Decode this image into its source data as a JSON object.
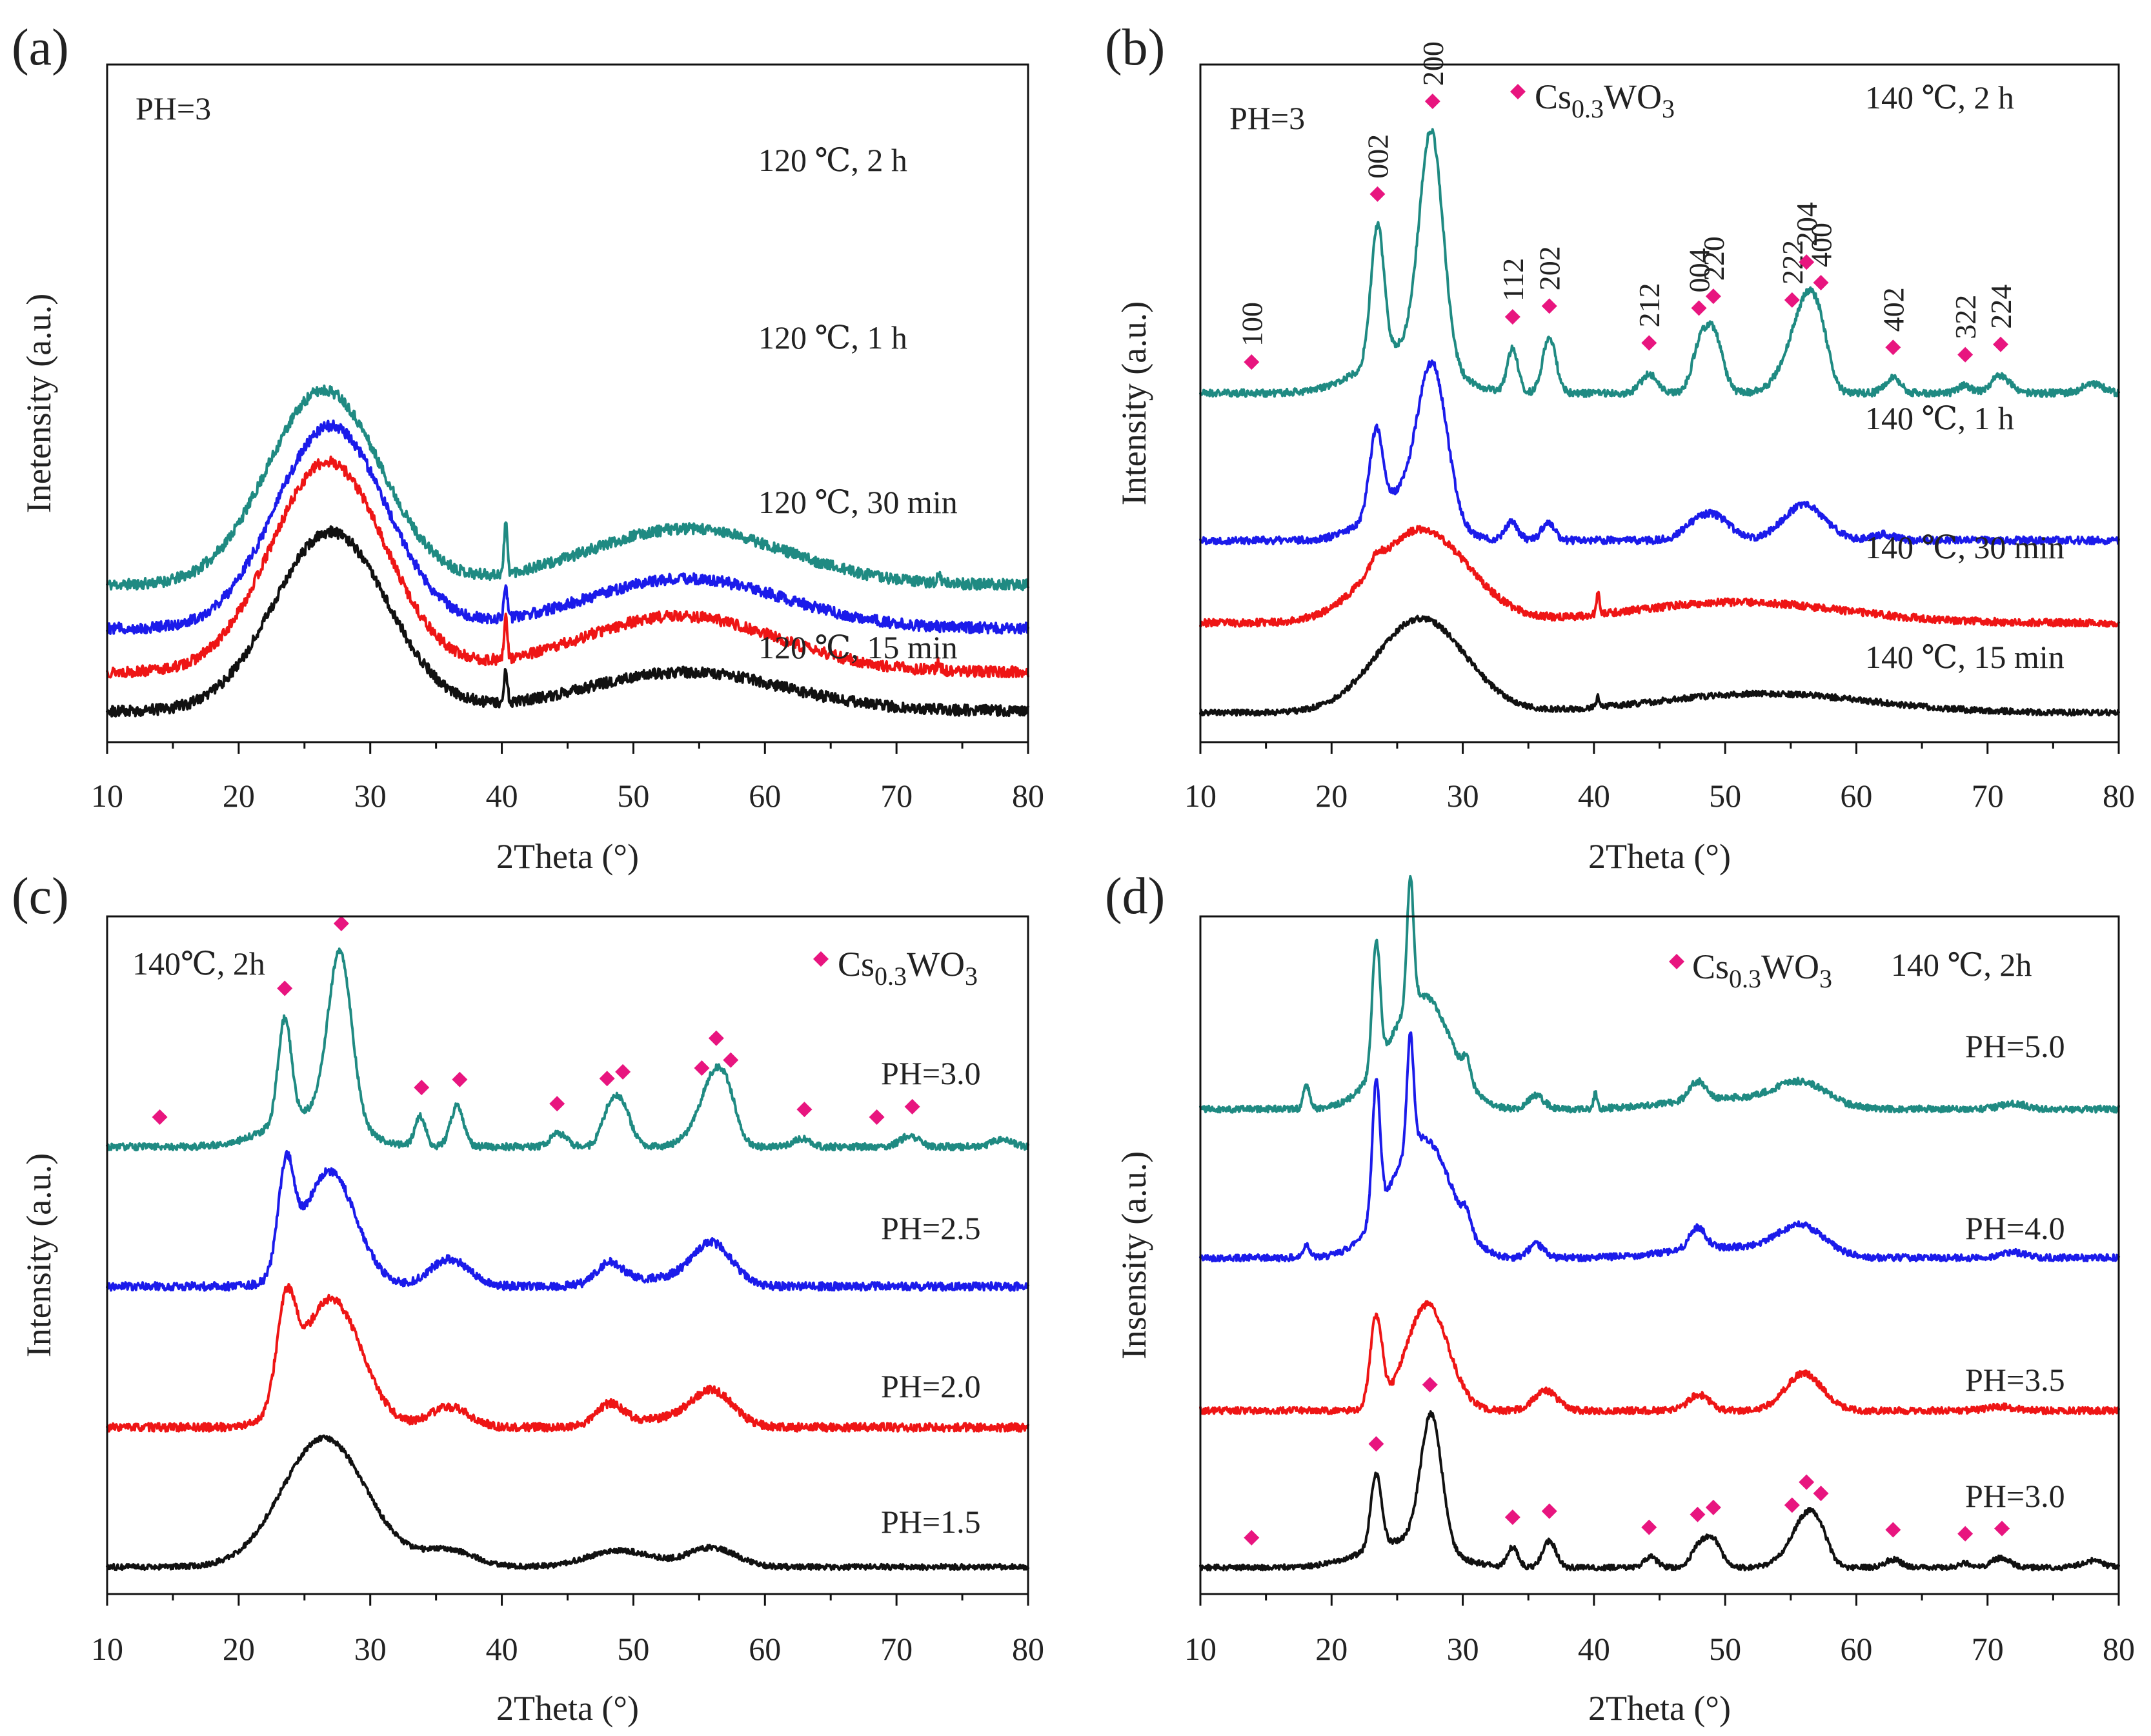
{
  "colors": {
    "teal": "#1f8a82",
    "blue": "#1b1bea",
    "red": "#ee1515",
    "black": "#111111",
    "marker": "#e8157f"
  },
  "legend_name": "Cs0.3WO3",
  "legend_main": "Cs",
  "legend_sub": "0.3",
  "legend_mid": "WO",
  "legend_sub2": "3",
  "chart_data": [
    {
      "panel": "(a)",
      "type": "line",
      "xlabel": "2Theta (°)",
      "ylabel": "Inetensity (a.u.)",
      "xlim": [
        10,
        80
      ],
      "xticks": [
        "10",
        "20",
        "30",
        "40",
        "50",
        "60",
        "70",
        "80"
      ],
      "annotation": "PH=3",
      "series": [
        {
          "name": "120 ℃, 2 h",
          "color": "teal",
          "baseline": 0.86,
          "peaks": [
            [
              26.5,
              1.25,
              4.3
            ],
            [
              54,
              0.36,
              7.5
            ],
            [
              40.3,
              0.33,
              0.12
            ],
            [
              73.2,
              0.05,
              0.15
            ]
          ],
          "noise": 0.035,
          "seed": 11
        },
        {
          "name": "120 ℃, 1 h",
          "color": "blue",
          "baseline": 0.58,
          "peaks": [
            [
              27,
              1.3,
              4.2
            ],
            [
              54,
              0.32,
              7.5
            ],
            [
              40.3,
              0.22,
              0.12
            ]
          ],
          "noise": 0.035,
          "seed": 12
        },
        {
          "name": "120 ℃, 30 min",
          "color": "red",
          "baseline": 0.3,
          "peaks": [
            [
              26.8,
              1.35,
              4.3
            ],
            [
              53.5,
              0.36,
              7.5
            ],
            [
              40.3,
              0.26,
              0.12
            ],
            [
              73.2,
              0.05,
              0.15
            ]
          ],
          "noise": 0.035,
          "seed": 13
        },
        {
          "name": "120 ℃, 15 min",
          "color": "black",
          "baseline": 0.05,
          "peaks": [
            [
              27,
              1.15,
              4.3
            ],
            [
              54,
              0.25,
              7.5
            ],
            [
              40.3,
              0.22,
              0.12
            ]
          ],
          "noise": 0.035,
          "seed": 14
        }
      ]
    },
    {
      "panel": "(b)",
      "type": "line",
      "xlabel": "2Theta (°)",
      "ylabel": "Intensity (a.u.)",
      "xlim": [
        10,
        80
      ],
      "xticks": [
        "10",
        "20",
        "30",
        "40",
        "50",
        "60",
        "70",
        "80"
      ],
      "annotation": "PH=3",
      "legend": "Cs0.3WO3",
      "miller_indices": [
        {
          "hkl": "100",
          "x": 13.9
        },
        {
          "hkl": "002",
          "x": 23.5
        },
        {
          "hkl": "200",
          "x": 27.7
        },
        {
          "hkl": "112",
          "x": 33.8
        },
        {
          "hkl": "202",
          "x": 36.6
        },
        {
          "hkl": "212",
          "x": 44.2
        },
        {
          "hkl": "004",
          "x": 48.0
        },
        {
          "hkl": "220",
          "x": 49.1
        },
        {
          "hkl": "222",
          "x": 55.1
        },
        {
          "hkl": "204",
          "x": 56.2
        },
        {
          "hkl": "400",
          "x": 57.3
        },
        {
          "hkl": "402",
          "x": 62.8
        },
        {
          "hkl": "322",
          "x": 68.3
        },
        {
          "hkl": "224",
          "x": 71.0
        }
      ],
      "series": [
        {
          "name": "140 ℃, 2 h",
          "color": "teal",
          "baseline": 2.22,
          "peaks": [
            [
              23.5,
              0.9,
              0.5
            ],
            [
              25.5,
              0.3,
              3
            ],
            [
              27.6,
              1.55,
              0.9
            ],
            [
              33.8,
              0.3,
              0.4
            ],
            [
              36.6,
              0.38,
              0.5
            ],
            [
              44.2,
              0.13,
              0.6
            ],
            [
              48.0,
              0.25,
              0.6
            ],
            [
              49.1,
              0.4,
              0.7
            ],
            [
              55.3,
              0.25,
              1.2
            ],
            [
              56.3,
              0.42,
              0.9
            ],
            [
              57.3,
              0.25,
              0.7
            ],
            [
              62.8,
              0.1,
              0.6
            ],
            [
              68.3,
              0.05,
              0.5
            ],
            [
              71.0,
              0.12,
              0.7
            ],
            [
              78,
              0.06,
              0.8
            ]
          ],
          "noise": 0.025,
          "seed": 21
        },
        {
          "name": "140 ℃, 1 h",
          "color": "blue",
          "baseline": 1.22,
          "peaks": [
            [
              23.4,
              0.55,
              0.5
            ],
            [
              25.5,
              0.3,
              2.5
            ],
            [
              27.7,
              1.0,
              1.1
            ],
            [
              33.7,
              0.12,
              0.5
            ],
            [
              36.5,
              0.12,
              0.5
            ],
            [
              47.5,
              0.07,
              1
            ],
            [
              49.2,
              0.16,
              1.2
            ],
            [
              56,
              0.24,
              1.6
            ],
            [
              62,
              0.04,
              1
            ]
          ],
          "noise": 0.025,
          "seed": 22
        },
        {
          "name": "140 ℃, 30 min",
          "color": "red",
          "baseline": 0.66,
          "peaks": [
            [
              26.8,
              0.63,
              3.6
            ],
            [
              23.4,
              0.08,
              0.4
            ],
            [
              40.3,
              0.14,
              0.12
            ],
            [
              51,
              0.14,
              8
            ]
          ],
          "noise": 0.025,
          "seed": 23
        },
        {
          "name": "140 ℃, 15 min",
          "color": "black",
          "baseline": 0.05,
          "peaks": [
            [
              26.8,
              0.64,
              3.4
            ],
            [
              40.3,
              0.07,
              0.12
            ],
            [
              53,
              0.13,
              8
            ]
          ],
          "noise": 0.02,
          "seed": 24
        }
      ]
    },
    {
      "panel": "(c)",
      "type": "line",
      "xlabel": "2Theta (°)",
      "ylabel": "Intensity (a.u.)",
      "xlim": [
        10,
        80
      ],
      "xticks": [
        "10",
        "20",
        "30",
        "40",
        "50",
        "60",
        "70",
        "80"
      ],
      "annotation": "140℃,   2h",
      "legend": "Cs0.3WO3",
      "markers_on": "PH=3.0",
      "marker_positions": [
        14.0,
        23.5,
        27.8,
        33.9,
        36.8,
        44.2,
        48.0,
        49.2,
        55.2,
        56.3,
        57.4,
        63.0,
        68.5,
        71.2
      ],
      "series": [
        {
          "name": "PH=3.0",
          "color": "teal",
          "baseline": 3.15,
          "peaks": [
            [
              23.5,
              0.75,
              0.5
            ],
            [
              25.5,
              0.25,
              3
            ],
            [
              27.7,
              1.25,
              0.9
            ],
            [
              33.8,
              0.22,
              0.4
            ],
            [
              36.6,
              0.3,
              0.5
            ],
            [
              44.3,
              0.1,
              0.6
            ],
            [
              48.1,
              0.2,
              0.6
            ],
            [
              49.1,
              0.3,
              0.7
            ],
            [
              55.5,
              0.2,
              1.2
            ],
            [
              56.3,
              0.35,
              0.9
            ],
            [
              57.3,
              0.2,
              0.7
            ],
            [
              62.8,
              0.06,
              0.6
            ],
            [
              71,
              0.08,
              0.7
            ],
            [
              78,
              0.05,
              0.8
            ]
          ],
          "noise": 0.025,
          "seed": 31
        },
        {
          "name": "PH=2.5",
          "color": "blue",
          "baseline": 2.12,
          "peaks": [
            [
              23.6,
              0.75,
              0.6
            ],
            [
              26.9,
              0.85,
              2.0
            ],
            [
              36,
              0.2,
              1.5
            ],
            [
              48.2,
              0.15,
              1.0
            ],
            [
              52,
              0.06,
              3
            ],
            [
              56,
              0.3,
              1.5
            ]
          ],
          "noise": 0.03,
          "seed": 32
        },
        {
          "name": "PH=2.0",
          "color": "red",
          "baseline": 1.08,
          "peaks": [
            [
              23.6,
              0.7,
              0.7
            ],
            [
              27,
              0.95,
              2.3
            ],
            [
              36,
              0.15,
              1.5
            ],
            [
              48.2,
              0.15,
              1.0
            ],
            [
              52,
              0.06,
              3
            ],
            [
              56,
              0.25,
              1.6
            ]
          ],
          "noise": 0.03,
          "seed": 33
        },
        {
          "name": "PH=1.5",
          "color": "black",
          "baseline": 0.05,
          "peaks": [
            [
              26.5,
              0.95,
              3.2
            ],
            [
              36,
              0.12,
              2
            ],
            [
              49,
              0.12,
              2.5
            ],
            [
              56,
              0.14,
              1.8
            ]
          ],
          "noise": 0.02,
          "seed": 34
        }
      ]
    },
    {
      "panel": "(d)",
      "type": "line",
      "xlabel": "2Theta (°)",
      "ylabel": "Insensity (a.u.)",
      "xlim": [
        10,
        80
      ],
      "xticks": [
        "10",
        "20",
        "30",
        "40",
        "50",
        "60",
        "70",
        "80"
      ],
      "annotation": "140 ℃,   2h",
      "legend": "Cs0.3WO3",
      "markers_on": "PH=3.0",
      "marker_positions": [
        13.9,
        23.4,
        27.5,
        33.8,
        36.6,
        44.2,
        47.9,
        49.1,
        55.1,
        56.2,
        57.3,
        62.8,
        68.3,
        71.1
      ],
      "series": [
        {
          "name": "PH=5.0",
          "color": "teal",
          "baseline": 3.5,
          "peaks": [
            [
              18.1,
              0.18,
              0.25
            ],
            [
              23.4,
              0.95,
              0.3
            ],
            [
              26.0,
              0.95,
              0.25
            ],
            [
              27.3,
              0.75,
              2.0
            ],
            [
              24.5,
              0.25,
              2
            ],
            [
              30.3,
              0.15,
              0.3
            ],
            [
              35.6,
              0.1,
              0.6
            ],
            [
              40.1,
              0.12,
              0.12
            ],
            [
              47.9,
              0.14,
              0.6
            ],
            [
              50,
              0.08,
              4
            ],
            [
              55.8,
              0.18,
              2.0
            ],
            [
              72,
              0.04,
              1
            ]
          ],
          "noise": 0.025,
          "seed": 41
        },
        {
          "name": "PH=4.0",
          "color": "blue",
          "baseline": 2.38,
          "peaks": [
            [
              18.1,
              0.1,
              0.25
            ],
            [
              23.4,
              1.0,
              0.3
            ],
            [
              26.0,
              0.85,
              0.25
            ],
            [
              27.3,
              0.8,
              2.0
            ],
            [
              24.5,
              0.25,
              2
            ],
            [
              30.3,
              0.12,
              0.3
            ],
            [
              35.6,
              0.1,
              0.6
            ],
            [
              47.9,
              0.16,
              0.6
            ],
            [
              50,
              0.08,
              4
            ],
            [
              55.8,
              0.22,
              1.8
            ],
            [
              72,
              0.04,
              1
            ]
          ],
          "noise": 0.025,
          "seed": 42
        },
        {
          "name": "PH=3.5",
          "color": "red",
          "baseline": 1.23,
          "peaks": [
            [
              23.4,
              0.68,
              0.45
            ],
            [
              27.3,
              0.8,
              1.6
            ],
            [
              36.3,
              0.15,
              0.9
            ],
            [
              48,
              0.12,
              0.8
            ],
            [
              56,
              0.28,
              1.4
            ],
            [
              71,
              0.03,
              1
            ]
          ],
          "noise": 0.025,
          "seed": 43
        },
        {
          "name": "PH=3.0",
          "color": "black",
          "baseline": 0.05,
          "peaks": [
            [
              23.4,
              0.55,
              0.4
            ],
            [
              25.5,
              0.2,
              3
            ],
            [
              27.6,
              1.0,
              0.8
            ],
            [
              33.8,
              0.15,
              0.4
            ],
            [
              36.6,
              0.2,
              0.5
            ],
            [
              44.3,
              0.08,
              0.5
            ],
            [
              48,
              0.15,
              0.6
            ],
            [
              49.1,
              0.2,
              0.6
            ],
            [
              55.5,
              0.15,
              1.2
            ],
            [
              56.3,
              0.25,
              0.9
            ],
            [
              57.3,
              0.15,
              0.7
            ],
            [
              62.8,
              0.06,
              0.6
            ],
            [
              68.3,
              0.03,
              0.5
            ],
            [
              71,
              0.07,
              0.7
            ],
            [
              78,
              0.05,
              0.8
            ]
          ],
          "noise": 0.02,
          "seed": 44
        }
      ]
    }
  ]
}
